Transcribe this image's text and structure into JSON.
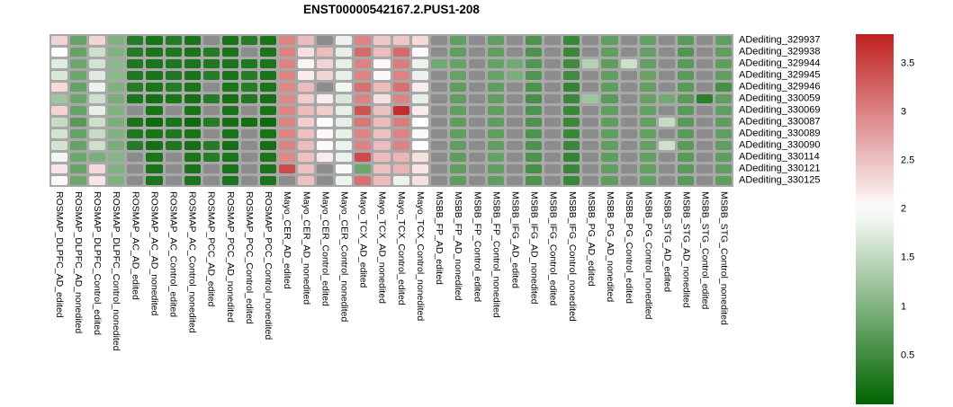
{
  "chart_data": {
    "type": "heatmap",
    "title": "ENST00000542167.2.PUS1-208",
    "legend_position": "right",
    "rows": [
      "ADediting_329937",
      "ADediting_329938",
      "ADediting_329944",
      "ADediting_329945",
      "ADediting_329946",
      "ADediting_330059",
      "ADediting_330069",
      "ADediting_330087",
      "ADediting_330089",
      "ADediting_330090",
      "ADediting_330114",
      "ADediting_330121",
      "ADediting_330125"
    ],
    "columns": [
      "ROSMAP_DLPFC_AD_edited",
      "ROSMAP_DLPFC_AD_nonedited",
      "ROSMAP_DLPFC_Control_edited",
      "ROSMAP_DLPFC_Control_nonedited",
      "ROSMAP_AC_AD_edited",
      "ROSMAP_AC_AD_nonedited",
      "ROSMAP_AC_Control_edited",
      "ROSMAP_AC_Control_nonedited",
      "ROSMAP_PCC_AD_edited",
      "ROSMAP_PCC_AD_nonedited",
      "ROSMAP_PCC_Control_edited",
      "ROSMAP_PCC_Control_nonedited",
      "Mayo_CER_AD_edited",
      "Mayo_CER_AD_nonedited",
      "Mayo_CER_Control_edited",
      "Mayo_CER_Control_nonedited",
      "Mayo_TCX_AD_edited",
      "Mayo_TCX_AD_nonedited",
      "Mayo_TCX_Control_edited",
      "Mayo_TCX_Control_nonedited",
      "MSBB_FP_AD_edited",
      "MSBB_FP_AD_nonedited",
      "MSBB_FP_Control_edited",
      "MSBB_FP_Control_nonedited",
      "MSBB_IFG_AD_edited",
      "MSBB_IFG_AD_nonedited",
      "MSBB_IFG_Control_edited",
      "MSBB_IFG_Control_nonedited",
      "MSBB_PG_AD_edited",
      "MSBB_PG_AD_nonedited",
      "MSBB_PG_Control_edited",
      "MSBB_PG_Control_nonedited",
      "MSBB_STG_AD_edited",
      "MSBB_STG_AD_nonedited",
      "MSBB_STG_Control_edited",
      "MSBB_STG_Control_nonedited"
    ],
    "values": [
      [
        2.35,
        0.8,
        2.35,
        1.0,
        0.3,
        0.2,
        0.3,
        0.2,
        null,
        0.2,
        0.3,
        0.2,
        3.0,
        2.55,
        null,
        1.85,
        3.0,
        2.45,
        2.45,
        2.3,
        null,
        0.75,
        null,
        0.75,
        null,
        0.6,
        null,
        0.45,
        null,
        0.75,
        null,
        0.78,
        null,
        0.7,
        null,
        0.75
      ],
      [
        2.0,
        0.8,
        1.6,
        1.0,
        0.3,
        0.2,
        0.25,
        0.2,
        0.3,
        0.2,
        null,
        0.2,
        3.0,
        2.25,
        2.55,
        1.8,
        3.2,
        2.55,
        3.2,
        2.05,
        null,
        0.75,
        null,
        0.75,
        null,
        0.6,
        null,
        0.45,
        null,
        0.75,
        null,
        0.78,
        null,
        0.65,
        null,
        0.75
      ],
      [
        1.75,
        0.85,
        1.65,
        1.1,
        0.25,
        0.2,
        0.25,
        0.2,
        0.25,
        0.2,
        0.25,
        0.2,
        3.0,
        2.1,
        2.35,
        1.8,
        3.0,
        2.05,
        3.05,
        1.85,
        0.9,
        0.8,
        null,
        0.8,
        0.9,
        0.65,
        null,
        0.5,
        1.4,
        0.75,
        1.6,
        0.78,
        null,
        0.7,
        null,
        0.75
      ],
      [
        1.7,
        0.85,
        1.75,
        1.1,
        0.25,
        0.2,
        0.25,
        0.2,
        0.3,
        0.2,
        0.3,
        0.2,
        3.0,
        2.15,
        2.35,
        1.8,
        3.0,
        2.05,
        3.0,
        1.85,
        null,
        0.8,
        null,
        0.8,
        0.95,
        0.65,
        null,
        0.5,
        null,
        0.75,
        null,
        0.8,
        null,
        0.7,
        null,
        0.75
      ],
      [
        2.3,
        0.8,
        1.85,
        1.0,
        0.3,
        0.2,
        0.3,
        0.2,
        null,
        0.2,
        0.3,
        0.2,
        2.95,
        2.55,
        null,
        1.9,
        3.15,
        2.55,
        3.15,
        2.15,
        null,
        0.75,
        null,
        0.75,
        null,
        0.6,
        null,
        0.4,
        null,
        0.75,
        null,
        0.78,
        null,
        0.7,
        null,
        0.55
      ],
      [
        1.25,
        0.85,
        1.6,
        0.95,
        0.2,
        0.15,
        0.2,
        0.15,
        0.3,
        0.15,
        0.25,
        0.15,
        2.95,
        2.4,
        2.15,
        1.7,
        3.0,
        2.25,
        3.0,
        1.8,
        null,
        0.75,
        null,
        0.75,
        null,
        0.55,
        null,
        0.45,
        1.25,
        0.7,
        null,
        0.8,
        0.9,
        0.7,
        0.35,
        0.75
      ],
      [
        2.35,
        0.8,
        1.8,
        1.0,
        null,
        0.2,
        null,
        0.2,
        null,
        0.2,
        null,
        0.2,
        3.0,
        2.55,
        2.4,
        1.8,
        3.4,
        2.5,
        3.7,
        2.15,
        null,
        0.75,
        null,
        0.75,
        null,
        0.6,
        null,
        0.45,
        null,
        0.75,
        null,
        0.78,
        null,
        0.7,
        null,
        0.75
      ],
      [
        1.55,
        0.7,
        1.6,
        0.95,
        0.2,
        0.1,
        0.2,
        0.1,
        0.3,
        0.15,
        0.15,
        0.1,
        3.0,
        2.4,
        2.05,
        1.8,
        3.1,
        2.55,
        3.05,
        2.0,
        null,
        0.75,
        null,
        0.75,
        null,
        0.6,
        null,
        0.45,
        null,
        0.75,
        null,
        0.78,
        1.55,
        0.7,
        null,
        0.75
      ],
      [
        1.65,
        0.8,
        1.55,
        1.0,
        0.25,
        0.2,
        0.25,
        0.2,
        null,
        0.2,
        null,
        0.2,
        3.0,
        2.5,
        2.05,
        1.8,
        3.0,
        2.5,
        3.0,
        2.05,
        null,
        0.75,
        null,
        0.75,
        null,
        0.6,
        null,
        0.45,
        null,
        0.75,
        null,
        0.78,
        null,
        0.7,
        null,
        0.75
      ],
      [
        1.65,
        0.8,
        1.6,
        0.95,
        0.3,
        0.15,
        0.25,
        0.15,
        0.3,
        0.15,
        null,
        0.15,
        3.0,
        2.55,
        2.05,
        1.85,
        3.0,
        2.55,
        3.0,
        2.0,
        null,
        0.75,
        null,
        0.75,
        null,
        0.6,
        null,
        0.45,
        null,
        0.75,
        null,
        0.78,
        1.6,
        0.7,
        null,
        0.75
      ],
      [
        1.9,
        0.85,
        0.95,
        1.05,
        null,
        0.2,
        null,
        0.2,
        0.3,
        0.2,
        null,
        0.2,
        2.95,
        2.5,
        2.15,
        1.85,
        3.45,
        2.55,
        2.6,
        2.25,
        null,
        0.75,
        null,
        0.8,
        null,
        0.6,
        null,
        0.4,
        null,
        0.75,
        null,
        0.78,
        null,
        0.7,
        null,
        0.75
      ],
      [
        2.2,
        0.8,
        2.3,
        1.0,
        null,
        0.2,
        null,
        0.2,
        null,
        0.2,
        null,
        0.2,
        3.45,
        2.5,
        null,
        1.95,
        0.85,
        2.5,
        2.6,
        2.2,
        null,
        0.75,
        null,
        0.75,
        null,
        0.55,
        null,
        0.45,
        null,
        0.75,
        null,
        0.78,
        null,
        0.7,
        null,
        0.75
      ],
      [
        2.05,
        0.85,
        2.2,
        1.0,
        null,
        0.2,
        null,
        0.2,
        null,
        0.2,
        null,
        0.2,
        null,
        2.5,
        null,
        1.87,
        3.15,
        2.55,
        1.85,
        2.25,
        null,
        0.75,
        null,
        0.75,
        null,
        0.6,
        null,
        0.45,
        null,
        0.75,
        null,
        0.78,
        null,
        0.7,
        null,
        0.75
      ]
    ],
    "colorbar": {
      "tick_labels": [
        "3.5",
        "3",
        "2.5",
        "2",
        "1.5",
        "1",
        "0.5"
      ],
      "tick_values": [
        3.5,
        3.0,
        2.5,
        2.0,
        1.5,
        1.0,
        0.5
      ],
      "vmin": 0.0,
      "vmax": 3.8,
      "midpoint": 2.0,
      "color_low": "#006400",
      "color_mid": "#ffffff",
      "color_high": "#c02020",
      "na_color": "#8c8c8c",
      "grid_background": "#a8a8a8"
    }
  }
}
